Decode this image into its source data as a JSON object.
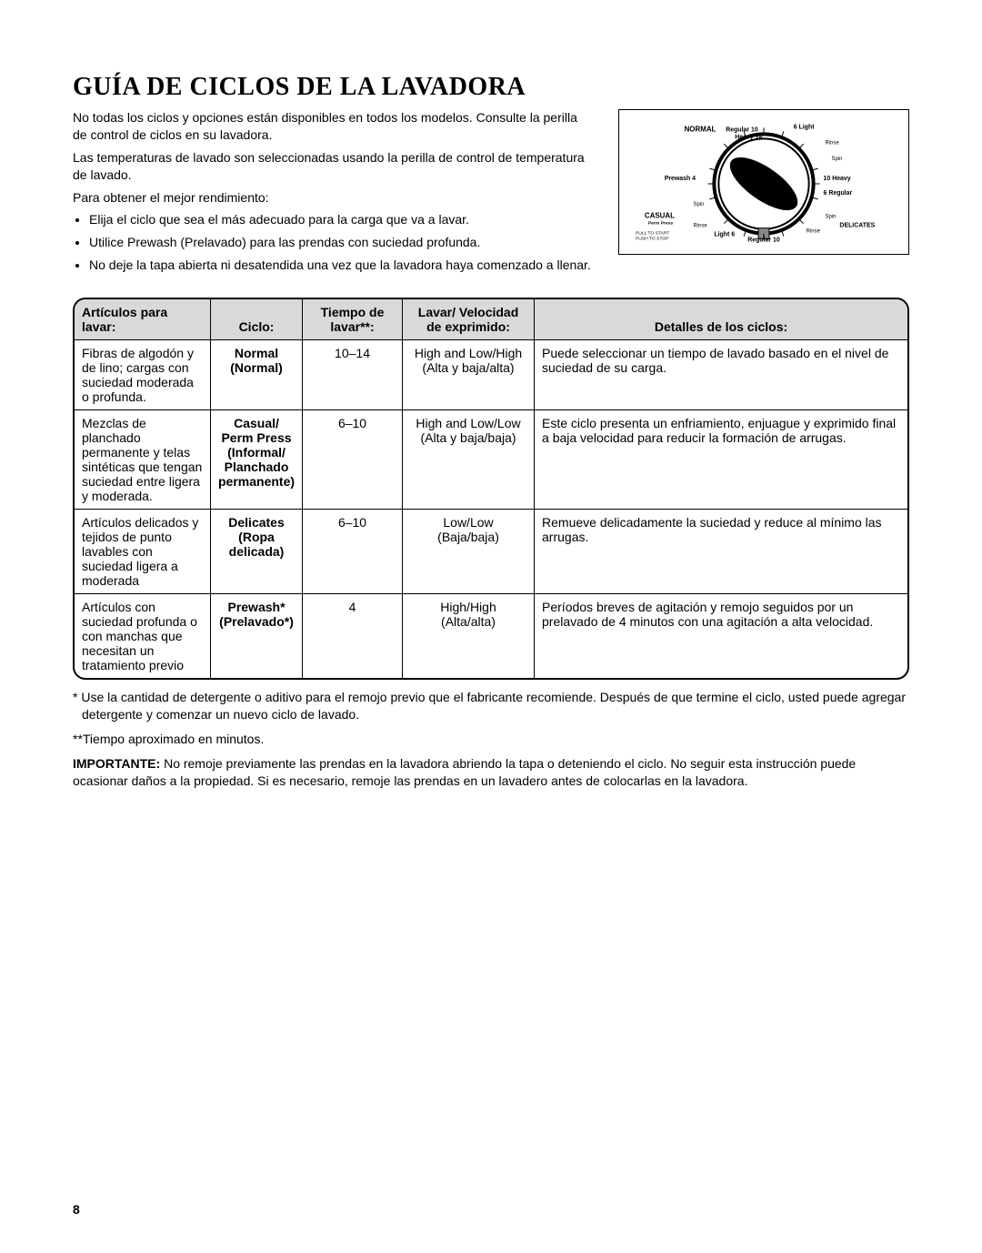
{
  "title": "GUÍA DE CICLOS DE LA LAVADORA",
  "intro": {
    "p1": "No todas los ciclos y opciones están disponibles en todos los modelos. Consulte la perilla de control de ciclos en su lavadora.",
    "p2": "Las temperaturas de lavado son seleccionadas usando la perilla de control de temperatura de lavado.",
    "p3": "Para obtener el mejor rendimiento:",
    "bullets": [
      "Elija el ciclo que sea el más adecuado para la carga que va a lavar.",
      "Utilice Prewash (Prelavado) para las prendas con suciedad profunda.",
      "No deje la tapa abierta ni desatendida una vez que la lavadora haya comenzado a llenar."
    ]
  },
  "dial": {
    "labels": {
      "normal": "NORMAL",
      "casual": "CASUAL",
      "casual_sub": "Perm Press",
      "delicates": "DELICATES",
      "regular10_top": "Regular 10",
      "heavy14": "Heavy 14",
      "light6_top": "6 Light",
      "rinse_tr": "Rinse",
      "spin_r": "Spin",
      "heavy10": "10 Heavy",
      "regular6": "6 Regular",
      "spin_br": "Spin",
      "rinse_br": "Rinse",
      "regular10_bot": "Regular 10",
      "light6_bot": "Light 6",
      "rinse_bl": "Rinse",
      "spin_bl": "Spin",
      "prewash4": "Prewash 4",
      "pull": "PULL TO START",
      "push": "PUSH TO STOP"
    }
  },
  "table": {
    "headers": {
      "items": "Artículos para lavar:",
      "cycle": "Ciclo:",
      "time": "Tiempo de lavar**:",
      "speed": "Lavar/ Velocidad de exprimido:",
      "details": "Detalles de los ciclos:"
    },
    "col_widths": [
      "150px",
      "100px",
      "110px",
      "145px",
      "auto"
    ],
    "rows": [
      {
        "items": "Fibras de algodón y de lino; cargas con suciedad moderada o profunda.",
        "cycle_b": "Normal",
        "cycle_p": "(Normal)",
        "time": "10–14",
        "speed1": "High and Low/High",
        "speed2": "(Alta y baja/alta)",
        "details": "Puede seleccionar un tiempo de lavado basado en el nivel de suciedad de su carga."
      },
      {
        "items": "Mezclas de planchado permanente y telas sintéticas que tengan suciedad entre ligera y moderada.",
        "cycle_b": "Casual/ Perm Press",
        "cycle_p": "(Informal/ Planchado permanente)",
        "time": "6–10",
        "speed1": "High and Low/Low",
        "speed2": "(Alta y baja/baja)",
        "details": "Este ciclo presenta un enfriamiento, enjuague y exprimido final a baja velocidad para reducir la formación de arrugas."
      },
      {
        "items": "Artículos delicados y tejidos de punto lavables con suciedad ligera a moderada",
        "cycle_b": "Delicates",
        "cycle_p": "(Ropa delicada)",
        "time": "6–10",
        "speed1": "Low/Low",
        "speed2": "(Baja/baja)",
        "details": "Remueve delicadamente la suciedad y reduce al mínimo las arrugas."
      },
      {
        "items": "Artículos con suciedad profunda o con manchas que necesitan un tratamiento previo",
        "cycle_b": "Prewash*",
        "cycle_p": "(Prelavado*)",
        "time": "4",
        "speed1": "High/High",
        "speed2": "(Alta/alta)",
        "details": "Períodos breves de agitación y remojo seguidos por un prelavado de 4 minutos con una agitación a alta velocidad."
      }
    ]
  },
  "footnotes": {
    "f1": "* Use la cantidad de detergente o aditivo para el remojo previo que el fabricante recomiende. Después de que termine el ciclo, usted puede agregar detergente y comenzar un nuevo ciclo de lavado.",
    "f2": "**Tiempo aproximado en minutos.",
    "imp_label": "IMPORTANTE:",
    "imp_text": " No remoje previamente las prendas en la lavadora abriendo la tapa o deteniendo el ciclo. No seguir esta instrucción puede ocasionar daños a la propiedad. Si es necesario, remoje las prendas en un lavadero antes de colocarlas en la lavadora."
  },
  "page_number": "8"
}
